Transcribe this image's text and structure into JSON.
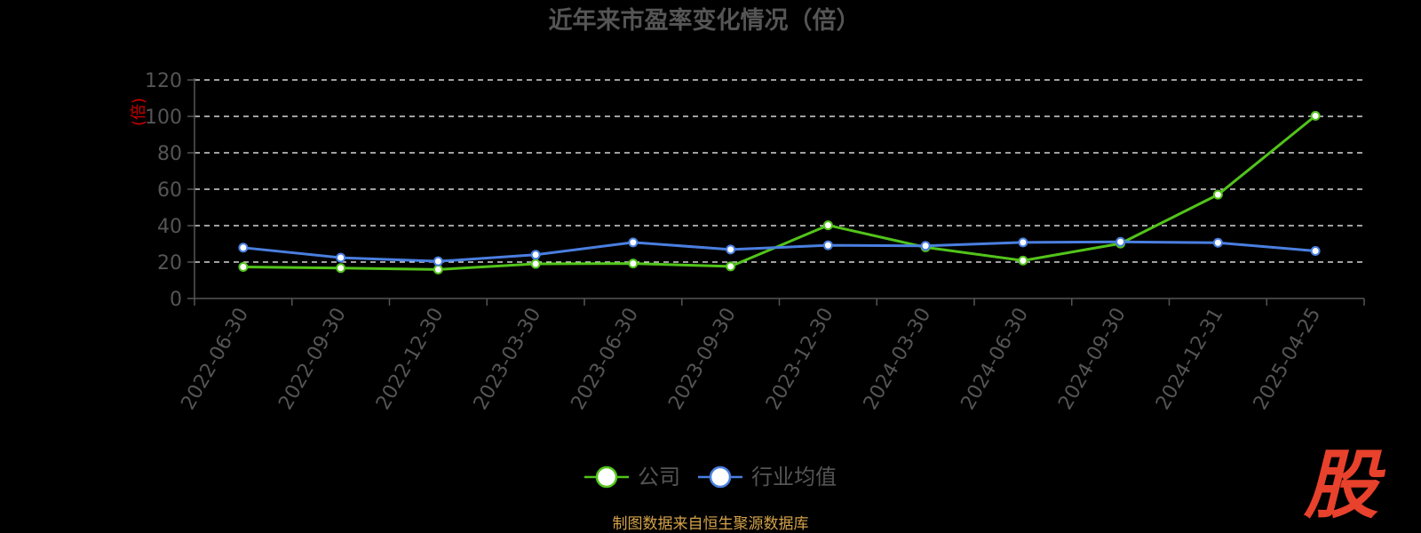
{
  "chart_data": {
    "type": "line",
    "title": "近年来市盈率变化情况（倍）",
    "ylabel": "(倍)",
    "xlabel": "",
    "ylim": [
      0,
      120
    ],
    "y_ticks": [
      0,
      20,
      40,
      60,
      80,
      100,
      120
    ],
    "categories": [
      "2022-06-30",
      "2022-09-30",
      "2022-12-30",
      "2023-03-30",
      "2023-06-30",
      "2023-09-30",
      "2023-12-30",
      "2024-03-30",
      "2024-06-30",
      "2024-09-30",
      "2024-12-31",
      "2025-04-25"
    ],
    "series": [
      {
        "name": "公司",
        "color": "#52c41a",
        "values": [
          17.3,
          16.7,
          15.9,
          19.0,
          19.2,
          17.6,
          40.2,
          28.1,
          20.8,
          30.2,
          57.0,
          100.3
        ]
      },
      {
        "name": "行业均值",
        "color": "#4a7fe0",
        "values": [
          27.9,
          22.4,
          20.4,
          24.0,
          30.8,
          26.9,
          29.2,
          28.9,
          30.8,
          31.1,
          30.6,
          26.1
        ]
      }
    ],
    "grid": true,
    "legend_position": "bottom-center"
  },
  "source_note": "制图数据来自恒生聚源数据库",
  "logo": {
    "text": "股",
    "color": "#e8412c"
  }
}
